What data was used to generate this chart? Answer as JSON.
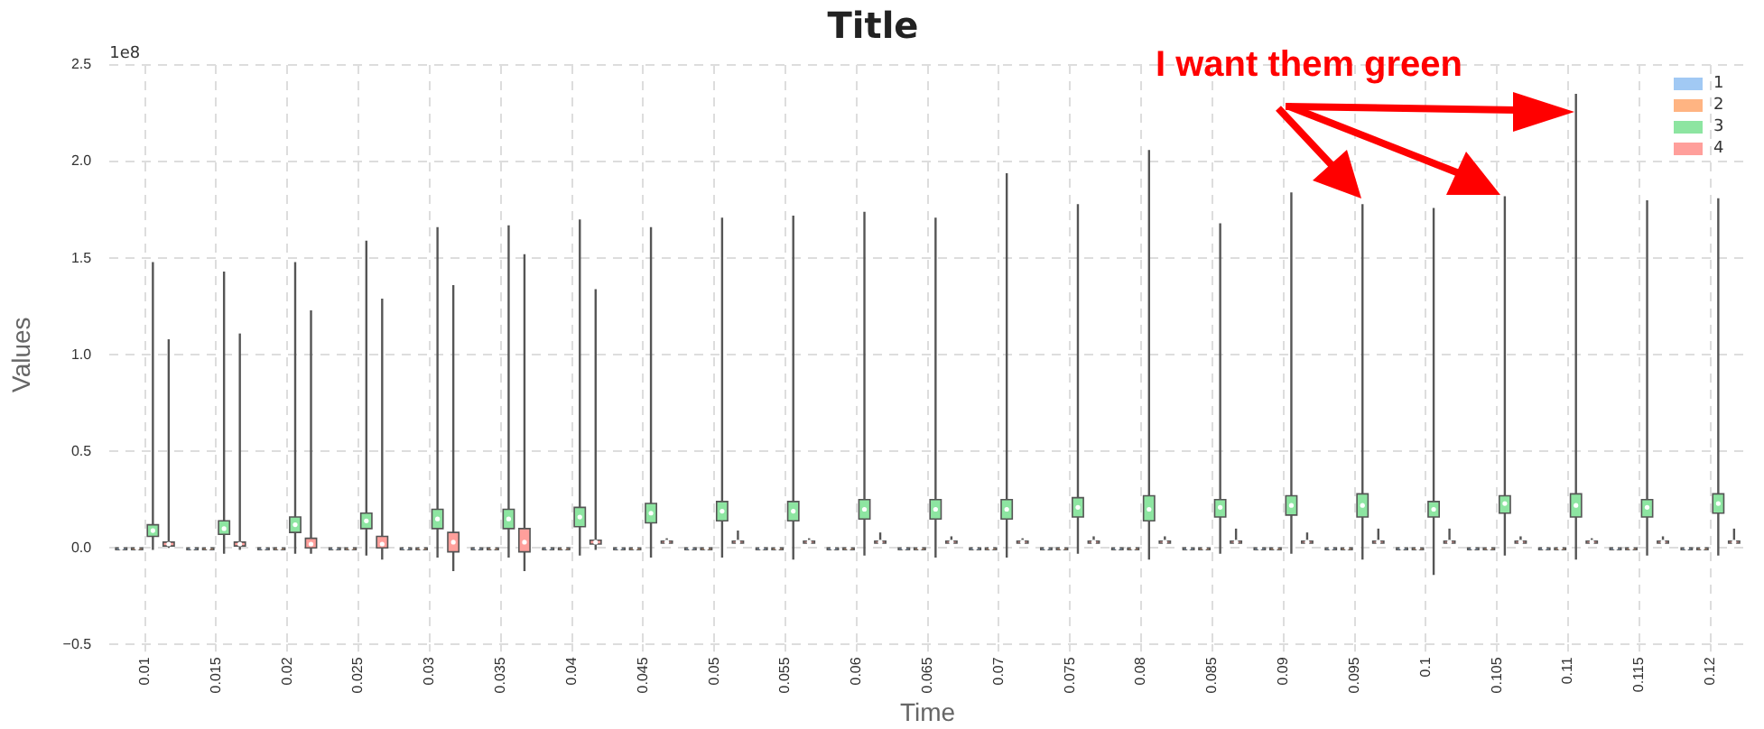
{
  "chart_data": {
    "type": "box",
    "title": "Title",
    "xlabel": "Time",
    "ylabel": "Values",
    "annotations": [
      "1e8",
      "I want them green"
    ],
    "categories": [
      "0.01",
      "0.015",
      "0.02",
      "0.025",
      "0.03",
      "0.035",
      "0.04",
      "0.045",
      "0.05",
      "0.055",
      "0.06",
      "0.065",
      "0.07",
      "0.075",
      "0.08",
      "0.085",
      "0.09",
      "0.095",
      "0.1",
      "0.105",
      "0.11",
      "0.115",
      "0.12"
    ],
    "ylim": [
      -0.5,
      2.5
    ],
    "yticks": [
      {
        "value": -0.5,
        "label": "−0.5"
      },
      {
        "value": 0,
        "label": "0.0"
      },
      {
        "value": 0.5,
        "label": "0.5"
      },
      {
        "value": 1,
        "label": "1.0"
      },
      {
        "value": 1.5,
        "label": "1.5"
      },
      {
        "value": 2,
        "label": "2.0"
      },
      {
        "value": 2.5,
        "label": "2.5"
      }
    ],
    "grid": true,
    "legend": "top right",
    "series": [
      {
        "name": "1",
        "color": "#a1c9f4",
        "boxes": [
          {
            "low": -0.01,
            "q1": 0,
            "median": 0,
            "q3": 0,
            "high": 0.01
          },
          {
            "low": -0.01,
            "q1": 0,
            "median": 0,
            "q3": 0,
            "high": 0.01
          },
          {
            "low": -0.01,
            "q1": 0,
            "median": 0,
            "q3": 0,
            "high": 0.01
          },
          {
            "low": -0.01,
            "q1": 0,
            "median": 0,
            "q3": 0,
            "high": 0.01
          },
          {
            "low": -0.01,
            "q1": 0,
            "median": 0,
            "q3": 0,
            "high": 0.01
          },
          {
            "low": -0.01,
            "q1": 0,
            "median": 0,
            "q3": 0,
            "high": 0.01
          },
          {
            "low": -0.01,
            "q1": 0,
            "median": 0,
            "q3": 0,
            "high": 0.01
          },
          {
            "low": -0.01,
            "q1": 0,
            "median": 0,
            "q3": 0,
            "high": 0.01
          },
          {
            "low": -0.01,
            "q1": 0,
            "median": 0,
            "q3": 0,
            "high": 0.01
          },
          {
            "low": -0.01,
            "q1": 0,
            "median": 0,
            "q3": 0,
            "high": 0.01
          },
          {
            "low": -0.01,
            "q1": 0,
            "median": 0,
            "q3": 0,
            "high": 0.01
          },
          {
            "low": -0.01,
            "q1": 0,
            "median": 0,
            "q3": 0,
            "high": 0.01
          },
          {
            "low": -0.01,
            "q1": 0,
            "median": 0,
            "q3": 0,
            "high": 0.01
          },
          {
            "low": -0.01,
            "q1": 0,
            "median": 0,
            "q3": 0,
            "high": 0.01
          },
          {
            "low": -0.01,
            "q1": 0,
            "median": 0,
            "q3": 0,
            "high": 0.01
          },
          {
            "low": -0.01,
            "q1": 0,
            "median": 0,
            "q3": 0,
            "high": 0.01
          },
          {
            "low": -0.01,
            "q1": 0,
            "median": 0,
            "q3": 0,
            "high": 0.01
          },
          {
            "low": -0.01,
            "q1": 0,
            "median": 0,
            "q3": 0,
            "high": 0.01
          },
          {
            "low": -0.01,
            "q1": 0,
            "median": 0,
            "q3": 0,
            "high": 0.01
          },
          {
            "low": -0.01,
            "q1": 0,
            "median": 0,
            "q3": 0,
            "high": 0.01
          },
          {
            "low": -0.01,
            "q1": 0,
            "median": 0,
            "q3": 0,
            "high": 0.01
          },
          {
            "low": -0.01,
            "q1": 0,
            "median": 0,
            "q3": 0,
            "high": 0.01
          },
          {
            "low": -0.01,
            "q1": 0,
            "median": 0,
            "q3": 0,
            "high": 0.01
          }
        ]
      },
      {
        "name": "2",
        "color": "#ffb482",
        "boxes": [
          {
            "low": -0.01,
            "q1": 0,
            "median": 0,
            "q3": 0,
            "high": 0.01
          },
          {
            "low": -0.01,
            "q1": 0,
            "median": 0,
            "q3": 0,
            "high": 0.01
          },
          {
            "low": -0.01,
            "q1": 0,
            "median": 0,
            "q3": 0,
            "high": 0.01
          },
          {
            "low": -0.01,
            "q1": 0,
            "median": 0,
            "q3": 0,
            "high": 0.01
          },
          {
            "low": -0.01,
            "q1": 0,
            "median": 0,
            "q3": 0,
            "high": 0.01
          },
          {
            "low": -0.01,
            "q1": 0,
            "median": 0,
            "q3": 0,
            "high": 0.01
          },
          {
            "low": -0.01,
            "q1": 0,
            "median": 0,
            "q3": 0,
            "high": 0.01
          },
          {
            "low": -0.01,
            "q1": 0,
            "median": 0,
            "q3": 0,
            "high": 0.01
          },
          {
            "low": -0.01,
            "q1": 0,
            "median": 0,
            "q3": 0,
            "high": 0.01
          },
          {
            "low": -0.01,
            "q1": 0,
            "median": 0,
            "q3": 0,
            "high": 0.01
          },
          {
            "low": -0.01,
            "q1": 0,
            "median": 0,
            "q3": 0,
            "high": 0.01
          },
          {
            "low": -0.01,
            "q1": 0,
            "median": 0,
            "q3": 0,
            "high": 0.01
          },
          {
            "low": -0.01,
            "q1": 0,
            "median": 0,
            "q3": 0,
            "high": 0.01
          },
          {
            "low": -0.01,
            "q1": 0,
            "median": 0,
            "q3": 0,
            "high": 0.01
          },
          {
            "low": -0.01,
            "q1": 0,
            "median": 0,
            "q3": 0,
            "high": 0.01
          },
          {
            "low": -0.01,
            "q1": 0,
            "median": 0,
            "q3": 0,
            "high": 0.01
          },
          {
            "low": -0.01,
            "q1": 0,
            "median": 0,
            "q3": 0,
            "high": 0.01
          },
          {
            "low": -0.01,
            "q1": 0,
            "median": 0,
            "q3": 0,
            "high": 0.01
          },
          {
            "low": -0.01,
            "q1": 0,
            "median": 0,
            "q3": 0,
            "high": 0.01
          },
          {
            "low": -0.01,
            "q1": 0,
            "median": 0,
            "q3": 0,
            "high": 0.01
          },
          {
            "low": -0.01,
            "q1": 0,
            "median": 0,
            "q3": 0,
            "high": 0.01
          },
          {
            "low": -0.01,
            "q1": 0,
            "median": 0,
            "q3": 0,
            "high": 0.01
          },
          {
            "low": -0.01,
            "q1": 0,
            "median": 0,
            "q3": 0,
            "high": 0.01
          }
        ]
      },
      {
        "name": "3",
        "color": "#8de5a1",
        "boxes": [
          {
            "low": -0.01,
            "q1": 0.06,
            "median": 0.09,
            "q3": 0.12,
            "high": 1.48
          },
          {
            "low": -0.03,
            "q1": 0.07,
            "median": 0.1,
            "q3": 0.14,
            "high": 1.43
          },
          {
            "low": -0.03,
            "q1": 0.08,
            "median": 0.12,
            "q3": 0.16,
            "high": 1.48
          },
          {
            "low": -0.04,
            "q1": 0.1,
            "median": 0.14,
            "q3": 0.18,
            "high": 1.59
          },
          {
            "low": -0.05,
            "q1": 0.1,
            "median": 0.15,
            "q3": 0.2,
            "high": 1.66
          },
          {
            "low": -0.05,
            "q1": 0.1,
            "median": 0.15,
            "q3": 0.2,
            "high": 1.67
          },
          {
            "low": -0.04,
            "q1": 0.11,
            "median": 0.16,
            "q3": 0.21,
            "high": 1.7
          },
          {
            "low": -0.05,
            "q1": 0.13,
            "median": 0.18,
            "q3": 0.23,
            "high": 1.66
          },
          {
            "low": -0.05,
            "q1": 0.14,
            "median": 0.19,
            "q3": 0.24,
            "high": 1.71
          },
          {
            "low": -0.06,
            "q1": 0.14,
            "median": 0.19,
            "q3": 0.24,
            "high": 1.72
          },
          {
            "low": -0.04,
            "q1": 0.15,
            "median": 0.2,
            "q3": 0.25,
            "high": 1.74
          },
          {
            "low": -0.05,
            "q1": 0.15,
            "median": 0.2,
            "q3": 0.25,
            "high": 1.71
          },
          {
            "low": -0.05,
            "q1": 0.15,
            "median": 0.2,
            "q3": 0.25,
            "high": 1.94
          },
          {
            "low": -0.03,
            "q1": 0.16,
            "median": 0.21,
            "q3": 0.26,
            "high": 1.78
          },
          {
            "low": -0.06,
            "q1": 0.14,
            "median": 0.2,
            "q3": 0.27,
            "high": 2.06
          },
          {
            "low": -0.03,
            "q1": 0.16,
            "median": 0.21,
            "q3": 0.25,
            "high": 1.68
          },
          {
            "low": -0.03,
            "q1": 0.17,
            "median": 0.22,
            "q3": 0.27,
            "high": 1.84
          },
          {
            "low": -0.06,
            "q1": 0.16,
            "median": 0.22,
            "q3": 0.28,
            "high": 1.78
          },
          {
            "low": -0.14,
            "q1": 0.16,
            "median": 0.2,
            "q3": 0.24,
            "high": 1.76
          },
          {
            "low": -0.04,
            "q1": 0.18,
            "median": 0.23,
            "q3": 0.27,
            "high": 1.82
          },
          {
            "low": -0.06,
            "q1": 0.16,
            "median": 0.22,
            "q3": 0.28,
            "high": 2.35
          },
          {
            "low": -0.04,
            "q1": 0.16,
            "median": 0.21,
            "q3": 0.25,
            "high": 1.8
          },
          {
            "low": -0.04,
            "q1": 0.18,
            "median": 0.23,
            "q3": 0.28,
            "high": 1.81
          }
        ]
      },
      {
        "name": "4",
        "color": "#ff9f9b",
        "boxes": [
          {
            "low": 0,
            "q1": 0.01,
            "median": 0.02,
            "q3": 0.03,
            "high": 1.08
          },
          {
            "low": -0.01,
            "q1": 0.01,
            "median": 0.02,
            "q3": 0.03,
            "high": 1.11
          },
          {
            "low": -0.03,
            "q1": 0,
            "median": 0.02,
            "q3": 0.05,
            "high": 1.23
          },
          {
            "low": -0.06,
            "q1": 0,
            "median": 0.02,
            "q3": 0.06,
            "high": 1.29
          },
          {
            "low": -0.12,
            "q1": -0.02,
            "median": 0.03,
            "q3": 0.08,
            "high": 1.36
          },
          {
            "low": -0.12,
            "q1": -0.02,
            "median": 0.03,
            "q3": 0.1,
            "high": 1.52
          },
          {
            "low": -0.01,
            "q1": 0.02,
            "median": 0.03,
            "q3": 0.04,
            "high": 1.34
          },
          {
            "low": 0.02,
            "q1": 0.025,
            "median": 0.03,
            "q3": 0.035,
            "high": 0.05
          },
          {
            "low": 0.02,
            "q1": 0.025,
            "median": 0.03,
            "q3": 0.035,
            "high": 0.09
          },
          {
            "low": 0.02,
            "q1": 0.025,
            "median": 0.03,
            "q3": 0.035,
            "high": 0.05
          },
          {
            "low": 0.02,
            "q1": 0.025,
            "median": 0.03,
            "q3": 0.035,
            "high": 0.08
          },
          {
            "low": 0.02,
            "q1": 0.025,
            "median": 0.03,
            "q3": 0.035,
            "high": 0.06
          },
          {
            "low": 0.02,
            "q1": 0.025,
            "median": 0.03,
            "q3": 0.035,
            "high": 0.05
          },
          {
            "low": 0.02,
            "q1": 0.025,
            "median": 0.03,
            "q3": 0.035,
            "high": 0.06
          },
          {
            "low": 0.02,
            "q1": 0.025,
            "median": 0.03,
            "q3": 0.035,
            "high": 0.06
          },
          {
            "low": 0.02,
            "q1": 0.025,
            "median": 0.03,
            "q3": 0.035,
            "high": 0.1
          },
          {
            "low": 0.02,
            "q1": 0.025,
            "median": 0.03,
            "q3": 0.035,
            "high": 0.08
          },
          {
            "low": 0.02,
            "q1": 0.025,
            "median": 0.03,
            "q3": 0.035,
            "high": 0.1
          },
          {
            "low": 0.02,
            "q1": 0.025,
            "median": 0.03,
            "q3": 0.035,
            "high": 0.1
          },
          {
            "low": 0.02,
            "q1": 0.025,
            "median": 0.03,
            "q3": 0.035,
            "high": 0.06
          },
          {
            "low": 0.02,
            "q1": 0.025,
            "median": 0.03,
            "q3": 0.035,
            "high": 0.05
          },
          {
            "low": 0.02,
            "q1": 0.025,
            "median": 0.03,
            "q3": 0.035,
            "high": 0.06
          },
          {
            "low": 0.02,
            "q1": 0.025,
            "median": 0.03,
            "q3": 0.035,
            "high": 0.1
          }
        ]
      }
    ]
  }
}
